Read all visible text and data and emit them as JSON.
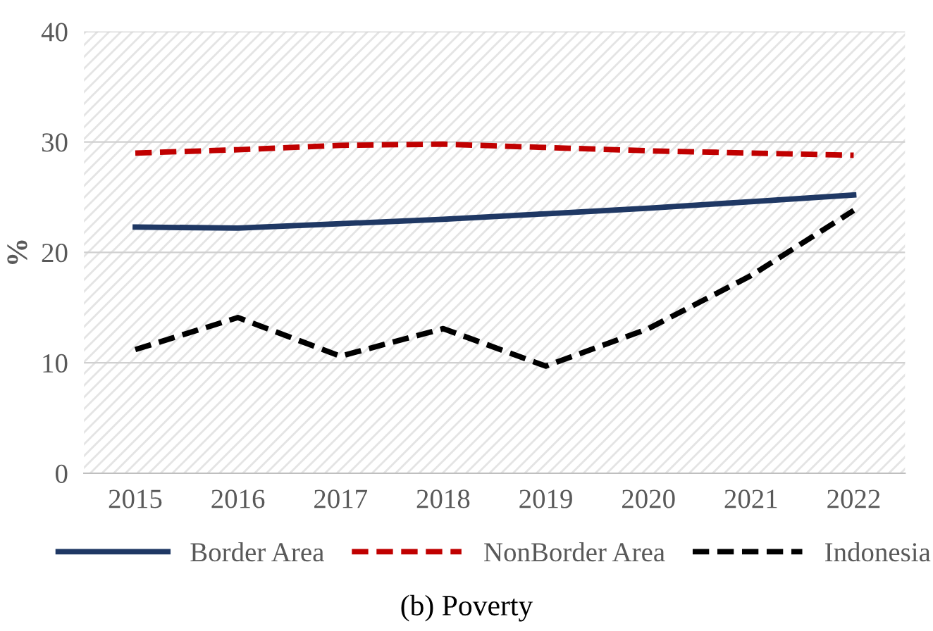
{
  "chart_data": {
    "type": "line",
    "title": "(b) Poverty",
    "ylabel": "%",
    "categories": [
      "2015",
      "2016",
      "2017",
      "2018",
      "2019",
      "2020",
      "2021",
      "2022"
    ],
    "series": [
      {
        "name": "Border Area",
        "color": "#1f3864",
        "line_style": "solid",
        "values": [
          22.3,
          22.2,
          22.6,
          23.0,
          23.5,
          24.0,
          24.6,
          25.2
        ]
      },
      {
        "name": "NonBorder Area",
        "color": "#c00000",
        "line_style": "dashed",
        "values": [
          29.0,
          29.3,
          29.7,
          29.8,
          29.5,
          29.2,
          29.0,
          28.8
        ]
      },
      {
        "name": "Indonesia",
        "color": "#000000",
        "line_style": "dashed",
        "values": [
          11.2,
          14.1,
          10.6,
          13.1,
          9.7,
          13.1,
          17.9,
          23.8
        ]
      }
    ],
    "ylim": [
      0,
      40
    ],
    "yticks": [
      0,
      10,
      20,
      30,
      40
    ],
    "grid": "y",
    "legend": "bottom",
    "marker": "none"
  }
}
